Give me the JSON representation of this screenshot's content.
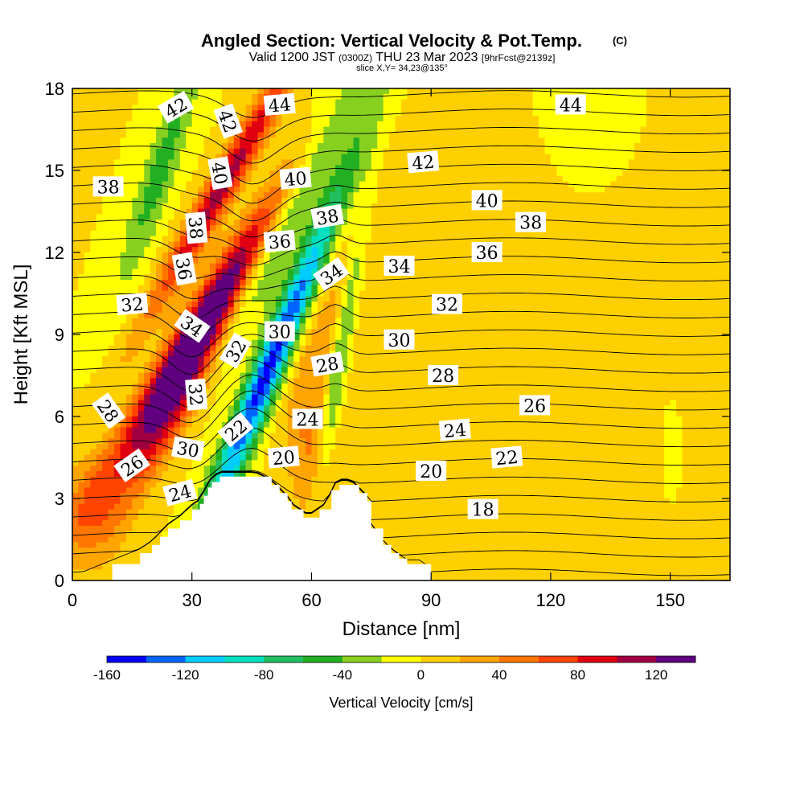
{
  "header": {
    "title": "Angled Section: Vertical Velocity & Pot.Temp.",
    "title_mark": "(C)",
    "valid_prefix": "Valid 1200 JST",
    "valid_zulu": "(0300Z)",
    "valid_date": "THU 23 Mar 2023",
    "valid_fcst": "[9hrFcst@2139z]",
    "slice": "slice X,Y= 34,23@135°"
  },
  "chart_data": {
    "type": "heatmap",
    "xlabel": "Distance [nm]",
    "ylabel": "Height [Kft MSL]",
    "xlim": [
      0,
      165
    ],
    "ylim": [
      0,
      18
    ],
    "x_ticks": [
      0,
      30,
      60,
      90,
      120,
      150
    ],
    "y_ticks": [
      0,
      3,
      6,
      9,
      12,
      15,
      18
    ],
    "x_tick_labels": [
      "0",
      "30",
      "60",
      "90",
      "120",
      "150"
    ],
    "y_tick_labels": [
      "0",
      "3",
      "6",
      "9",
      "12",
      "15",
      "18"
    ],
    "colorbar": {
      "label": "Vertical Velocity [cm/s]",
      "min": -160,
      "max": 140,
      "step": 20,
      "tick_values": [
        -160,
        -120,
        -80,
        -40,
        0,
        40,
        80,
        120
      ],
      "tick_labels": [
        "-160",
        "-120",
        "-80",
        "-40",
        "0",
        "40",
        "80",
        "120"
      ],
      "colors": [
        "#0000ff",
        "#0066ff",
        "#00ccff",
        "#00e0c0",
        "#22c060",
        "#22b022",
        "#88d020",
        "#ffff00",
        "#ffd000",
        "#ffa500",
        "#ff7700",
        "#ff4400",
        "#e00010",
        "#a00040",
        "#600080"
      ]
    },
    "terrain_profile": {
      "x": [
        0,
        10,
        17,
        20,
        22,
        24,
        27,
        30,
        32,
        33,
        34,
        35,
        37,
        39,
        42,
        46,
        50,
        52,
        54,
        55,
        56,
        58,
        61,
        62,
        64,
        65,
        67,
        70,
        72,
        74,
        75,
        78,
        80,
        82,
        84,
        86,
        88,
        90,
        165
      ],
      "y": [
        0,
        0.6,
        1.0,
        1.3,
        1.6,
        1.9,
        2.2,
        2.6,
        2.8,
        3.1,
        3.4,
        3.6,
        3.8,
        3.8,
        3.8,
        3.8,
        3.5,
        3.2,
        2.9,
        2.6,
        2.6,
        2.3,
        2.3,
        2.6,
        2.6,
        3.3,
        3.5,
        3.5,
        3.2,
        2.9,
        1.9,
        1.3,
        1.0,
        0.8,
        0.6,
        0.6,
        0.6,
        0,
        0
      ]
    },
    "w_field": [
      {
        "name": "updraft-core",
        "x": 33,
        "y": 9.5,
        "sx": 4,
        "sy": 4,
        "value": 140,
        "tilt": 0.75
      },
      {
        "name": "updraft-upper",
        "x": 38,
        "y": 14.5,
        "sx": 3,
        "sy": 3.5,
        "value": 110,
        "tilt": 0.7
      },
      {
        "name": "updraft-lower",
        "x": 26,
        "y": 6.5,
        "sx": 4,
        "sy": 2.5,
        "value": 90,
        "tilt": 0.6
      },
      {
        "name": "downdraft-main",
        "x": 50,
        "y": 8.0,
        "sx": 3,
        "sy": 5,
        "value": -150,
        "tilt": 0.5
      },
      {
        "name": "downdraft-upper",
        "x": 56,
        "y": 14.0,
        "sx": 4,
        "sy": 4,
        "value": -60,
        "tilt": 0.6
      },
      {
        "name": "lee-downdraft",
        "x": 67,
        "y": 8.0,
        "sx": 1.5,
        "sy": 4,
        "value": -50,
        "tilt": 0.2
      },
      {
        "name": "left-upper-down",
        "x": 22,
        "y": 15.0,
        "sx": 3,
        "sy": 3,
        "value": -50,
        "tilt": 0.4
      },
      {
        "name": "lower-left-up",
        "x": 5,
        "y": 2.5,
        "sx": 6,
        "sy": 1.5,
        "value": 40,
        "tilt": 0
      },
      {
        "name": "lee-up",
        "x": 60,
        "y": 4.5,
        "sx": 4,
        "sy": 2,
        "value": 35,
        "tilt": 0
      },
      {
        "name": "mid-up",
        "x": 62,
        "y": 9.0,
        "sx": 4,
        "sy": 3,
        "value": 25,
        "tilt": 0.3
      },
      {
        "name": "far-up",
        "x": 110,
        "y": 8.0,
        "sx": 30,
        "sy": 6,
        "value": 10,
        "tilt": 0
      },
      {
        "name": "far-calm",
        "x": 125,
        "y": 14.0,
        "sx": 15,
        "sy": 4,
        "value": -5,
        "tilt": 0
      },
      {
        "name": "right-calm",
        "x": 150,
        "y": 5.0,
        "sx": 3,
        "sy": 2,
        "value": -5,
        "tilt": 0
      }
    ],
    "theta_contours": {
      "min": 18,
      "max": 44,
      "interval": 1,
      "labels": [
        {
          "x": 26,
          "y": 17.3,
          "text": "42",
          "angle": -30
        },
        {
          "x": 39,
          "y": 16.8,
          "text": "42",
          "angle": 70
        },
        {
          "x": 52,
          "y": 17.4,
          "text": "44",
          "angle": -5
        },
        {
          "x": 125,
          "y": 17.4,
          "text": "44",
          "angle": 0
        },
        {
          "x": 9,
          "y": 14.4,
          "text": "38",
          "angle": 0
        },
        {
          "x": 37,
          "y": 14.9,
          "text": "40",
          "angle": 80
        },
        {
          "x": 56,
          "y": 14.7,
          "text": "40",
          "angle": -5
        },
        {
          "x": 88,
          "y": 15.3,
          "text": "42",
          "angle": -5
        },
        {
          "x": 104,
          "y": 13.9,
          "text": "40",
          "angle": 0
        },
        {
          "x": 115,
          "y": 13.1,
          "text": "38",
          "angle": 0
        },
        {
          "x": 31,
          "y": 12.9,
          "text": "38",
          "angle": 85
        },
        {
          "x": 52,
          "y": 12.4,
          "text": "36",
          "angle": -5
        },
        {
          "x": 64,
          "y": 13.3,
          "text": "38",
          "angle": -10
        },
        {
          "x": 104,
          "y": 12.0,
          "text": "36",
          "angle": 0
        },
        {
          "x": 28,
          "y": 11.4,
          "text": "36",
          "angle": 80
        },
        {
          "x": 65,
          "y": 11.2,
          "text": "34",
          "angle": -35
        },
        {
          "x": 82,
          "y": 11.5,
          "text": "34",
          "angle": 0
        },
        {
          "x": 15,
          "y": 10.1,
          "text": "32",
          "angle": -5
        },
        {
          "x": 30,
          "y": 9.3,
          "text": "34",
          "angle": 35
        },
        {
          "x": 52,
          "y": 9.1,
          "text": "30",
          "angle": 0
        },
        {
          "x": 82,
          "y": 8.8,
          "text": "30",
          "angle": 0
        },
        {
          "x": 94,
          "y": 10.1,
          "text": "32",
          "angle": 0
        },
        {
          "x": 41,
          "y": 8.4,
          "text": "32",
          "angle": -60
        },
        {
          "x": 64,
          "y": 7.9,
          "text": "28",
          "angle": -10
        },
        {
          "x": 93,
          "y": 7.5,
          "text": "28",
          "angle": 0
        },
        {
          "x": 31,
          "y": 6.8,
          "text": "32",
          "angle": 85
        },
        {
          "x": 9,
          "y": 6.2,
          "text": "28",
          "angle": 55
        },
        {
          "x": 116,
          "y": 6.4,
          "text": "26",
          "angle": 0
        },
        {
          "x": 59,
          "y": 5.9,
          "text": "24",
          "angle": 0
        },
        {
          "x": 96,
          "y": 5.5,
          "text": "24",
          "angle": -5
        },
        {
          "x": 41,
          "y": 5.5,
          "text": "22",
          "angle": -40
        },
        {
          "x": 29,
          "y": 4.8,
          "text": "30",
          "angle": 10
        },
        {
          "x": 15,
          "y": 4.2,
          "text": "26",
          "angle": -35
        },
        {
          "x": 53,
          "y": 4.5,
          "text": "20",
          "angle": -5
        },
        {
          "x": 109,
          "y": 4.5,
          "text": "22",
          "angle": -5
        },
        {
          "x": 27,
          "y": 3.2,
          "text": "24",
          "angle": -15
        },
        {
          "x": 90,
          "y": 4.0,
          "text": "20",
          "angle": 0
        },
        {
          "x": 103,
          "y": 2.6,
          "text": "18",
          "angle": 0
        }
      ]
    }
  }
}
